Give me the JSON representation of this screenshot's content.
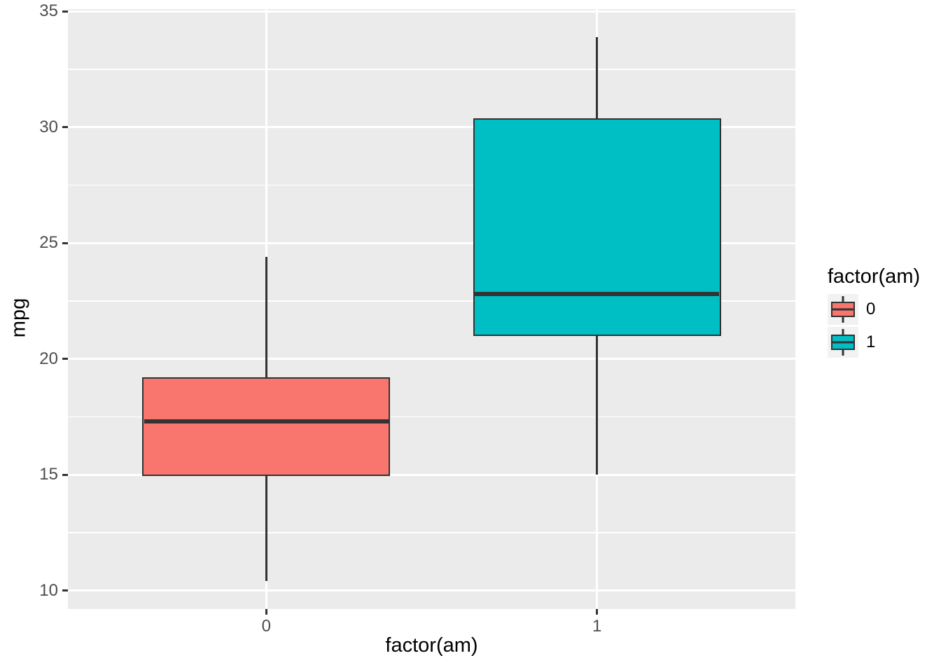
{
  "chart_data": {
    "type": "boxplot",
    "title": "",
    "xlabel": "factor(am)",
    "ylabel": "mpg",
    "categories": [
      "0",
      "1"
    ],
    "y_ticks": [
      10,
      15,
      20,
      25,
      30,
      35
    ],
    "y_minor_ticks": [
      12.5,
      17.5,
      22.5,
      27.5,
      32.5
    ],
    "ylim": [
      9.2,
      35.1
    ],
    "grid": "on",
    "series": [
      {
        "name": "0",
        "color": "#F8766D",
        "min": 10.4,
        "q1": 14.95,
        "median": 17.3,
        "q3": 19.2,
        "max": 24.4
      },
      {
        "name": "1",
        "color": "#00BFC4",
        "min": 15.0,
        "q1": 21.0,
        "median": 22.8,
        "q3": 30.4,
        "max": 33.9
      }
    ],
    "legend": {
      "title": "factor(am)",
      "position": "right",
      "entries": [
        {
          "label": "0",
          "color": "#F8766D"
        },
        {
          "label": "1",
          "color": "#00BFC4"
        }
      ]
    },
    "colors": {
      "panel_bg": "#EBEBEB",
      "grid_major": "#FFFFFF",
      "grid_minor": "#FFFFFF",
      "box_border": "#333333",
      "whisker": "#333333",
      "tick_mark": "#333333",
      "tick_text": "#4D4D4D",
      "axis_title_text": "#000000",
      "legend_key_bg": "#F2F2F2",
      "figure_bg": "#FFFFFF"
    }
  }
}
